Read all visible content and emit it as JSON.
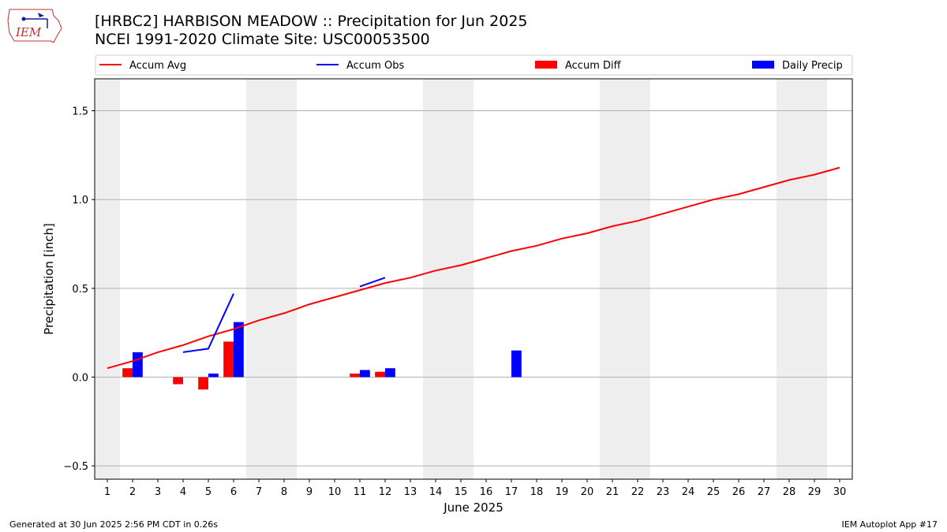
{
  "title_line1": "[HRBC2] HARBISON MEADOW :: Precipitation for Jun 2025",
  "title_line2": "NCEI 1991-2020 Climate Site: USC00053500",
  "logo_text": "IEM",
  "footer_left": "Generated at 30 Jun 2025 2:56 PM CDT in 0.26s",
  "footer_right": "IEM Autoplot App #17",
  "colors": {
    "avg": "#ff0000",
    "obs": "#0000ff",
    "diff": "#ff0000",
    "daily": "#0000ff",
    "weekend": "#eeeeee",
    "grid": "#b0b0b0"
  },
  "chart_data": {
    "type": "bar",
    "xlabel": "June 2025",
    "ylabel": "Precipitation [inch]",
    "ylim": [
      -0.575,
      1.68
    ],
    "xlim": [
      0.5,
      30.5
    ],
    "yticks": [
      -0.5,
      0.0,
      0.5,
      1.0,
      1.5
    ],
    "ytick_labels": [
      "−0.5",
      "0.0",
      "0.5",
      "1.0",
      "1.5"
    ],
    "x": [
      1,
      2,
      3,
      4,
      5,
      6,
      7,
      8,
      9,
      10,
      11,
      12,
      13,
      14,
      15,
      16,
      17,
      18,
      19,
      20,
      21,
      22,
      23,
      24,
      25,
      26,
      27,
      28,
      29,
      30
    ],
    "weekend_days": [
      1,
      7,
      8,
      14,
      15,
      21,
      22,
      28,
      29
    ],
    "grid": "y",
    "legend_position": "top",
    "legend": [
      "Accum Avg",
      "Accum Obs",
      "Accum Diff",
      "Daily Precip"
    ],
    "series": [
      {
        "name": "Accum Avg",
        "kind": "line",
        "color": "#ff0000",
        "values": [
          0.05,
          0.09,
          0.14,
          0.18,
          0.23,
          0.27,
          0.32,
          0.36,
          0.41,
          0.45,
          0.49,
          0.53,
          0.56,
          0.6,
          0.63,
          0.67,
          0.71,
          0.74,
          0.78,
          0.81,
          0.85,
          0.88,
          0.92,
          0.96,
          1.0,
          1.03,
          1.07,
          1.11,
          1.14,
          1.18
        ]
      },
      {
        "name": "Accum Obs",
        "kind": "line",
        "color": "#0000ff",
        "values": [
          null,
          null,
          null,
          0.14,
          0.16,
          0.47,
          null,
          null,
          null,
          null,
          0.51,
          0.56,
          null,
          null,
          null,
          null,
          null,
          null,
          null,
          null,
          null,
          null,
          null,
          null,
          null,
          null,
          null,
          null,
          null,
          null
        ]
      },
      {
        "name": "Accum Diff",
        "kind": "bar",
        "color": "#ff0000",
        "values": [
          null,
          0.05,
          null,
          -0.04,
          -0.07,
          0.2,
          null,
          null,
          null,
          null,
          0.02,
          0.03,
          null,
          null,
          null,
          null,
          null,
          null,
          null,
          null,
          null,
          null,
          null,
          null,
          null,
          null,
          null,
          null,
          null,
          null
        ]
      },
      {
        "name": "Daily Precip",
        "kind": "bar",
        "color": "#0000ff",
        "values": [
          0,
          0.14,
          0,
          0,
          0.02,
          0.31,
          0,
          0,
          0,
          0,
          0.04,
          0.05,
          0,
          0,
          0,
          0,
          0.15,
          0,
          0,
          0,
          0,
          0,
          0,
          0,
          0,
          0,
          0,
          0,
          0,
          0
        ]
      }
    ]
  }
}
